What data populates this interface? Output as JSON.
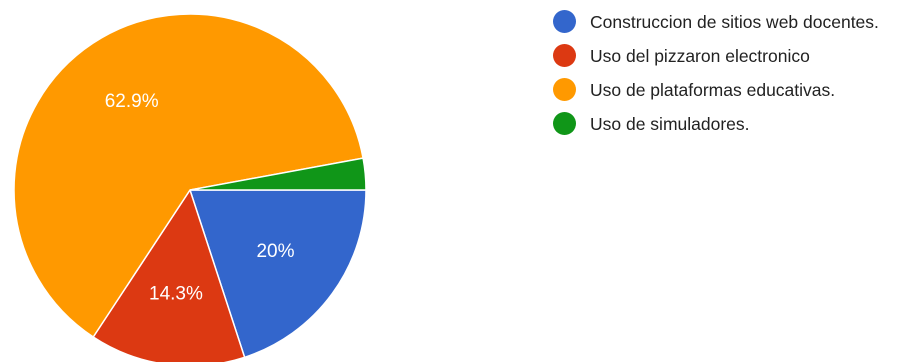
{
  "chart_data": {
    "type": "pie",
    "title": "",
    "slices": [
      {
        "label": "Construccion de sitios web docentes.",
        "value": 20,
        "display": "20%",
        "color": "#3366cc"
      },
      {
        "label": "Uso del pizzaron electronico",
        "value": 14.3,
        "display": "14.3%",
        "color": "#dc3912"
      },
      {
        "label": "Uso de plataformas educativas.",
        "value": 62.9,
        "display": "62.9%",
        "color": "#ff9900"
      },
      {
        "label": "Uso de simuladores.",
        "value": 2.9,
        "display": "",
        "color": "#109618"
      }
    ],
    "legend_position": "right"
  }
}
